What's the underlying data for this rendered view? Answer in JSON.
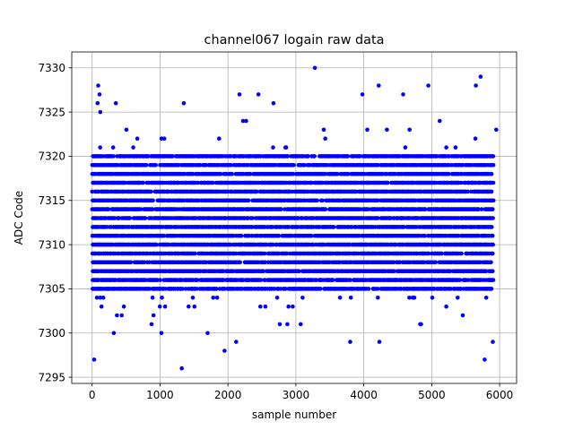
{
  "chart_data": {
    "type": "scatter",
    "title": "channel067 logain raw data",
    "xlabel": "sample number",
    "ylabel": "ADC Code",
    "xlim": [
      -300,
      6250
    ],
    "ylim": [
      7294.3,
      7331.8
    ],
    "xticks": [
      0,
      1000,
      2000,
      3000,
      4000,
      5000,
      6000
    ],
    "yticks": [
      7295,
      7300,
      7305,
      7310,
      7315,
      7320,
      7325,
      7330
    ],
    "grid": true,
    "marker_color": "#0000ff",
    "series": [
      {
        "n_samples": 5900,
        "core_values": [
          7305,
          7306,
          7307,
          7308,
          7309,
          7310,
          7311,
          7312,
          7313,
          7314,
          7315,
          7316,
          7317,
          7318,
          7319,
          7320
        ],
        "outliers": [
          {
            "x": 30,
            "y": 7297
          },
          {
            "x": 80,
            "y": 7326
          },
          {
            "x": 90,
            "y": 7328
          },
          {
            "x": 110,
            "y": 7327
          },
          {
            "x": 120,
            "y": 7325
          },
          {
            "x": 320,
            "y": 7300
          },
          {
            "x": 350,
            "y": 7326
          },
          {
            "x": 1020,
            "y": 7300
          },
          {
            "x": 1320,
            "y": 7296
          },
          {
            "x": 1350,
            "y": 7326
          },
          {
            "x": 1700,
            "y": 7300
          },
          {
            "x": 1950,
            "y": 7298
          },
          {
            "x": 2120,
            "y": 7299
          },
          {
            "x": 2170,
            "y": 7327
          },
          {
            "x": 2450,
            "y": 7327
          },
          {
            "x": 2670,
            "y": 7326
          },
          {
            "x": 3280,
            "y": 7330
          },
          {
            "x": 3800,
            "y": 7299
          },
          {
            "x": 3980,
            "y": 7327
          },
          {
            "x": 4220,
            "y": 7328
          },
          {
            "x": 4230,
            "y": 7299
          },
          {
            "x": 4580,
            "y": 7327
          },
          {
            "x": 4950,
            "y": 7328
          },
          {
            "x": 5650,
            "y": 7328
          },
          {
            "x": 5720,
            "y": 7329
          },
          {
            "x": 5780,
            "y": 7297
          },
          {
            "x": 5900,
            "y": 7299
          },
          {
            "x": 5950,
            "y": 7323
          }
        ]
      }
    ]
  }
}
